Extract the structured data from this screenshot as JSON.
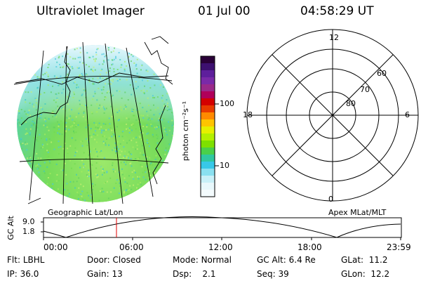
{
  "header": {
    "instrument": "Ultraviolet Imager",
    "date": "01 Jul 00",
    "time": "04:58:29 UT"
  },
  "colorbar": {
    "label": "photon cm⁻²s⁻¹",
    "tick_100": "100",
    "tick_10": "10",
    "colors": [
      "#2a0038",
      "#3d1070",
      "#5e1f9c",
      "#7a2aa8",
      "#9a2a8a",
      "#b0005a",
      "#d40000",
      "#e83b00",
      "#ff8a00",
      "#ffc400",
      "#e6f000",
      "#b4f000",
      "#7ee000",
      "#4ad04a",
      "#30c8a0",
      "#38c8e8",
      "#8ae0f0",
      "#c8f0f8",
      "#e8f8fc",
      "#f4fbfd"
    ]
  },
  "polar": {
    "labels": {
      "mlt_12": "12",
      "mlt_18": "18",
      "mlt_6": "6",
      "mlt_0": "0",
      "lat_60": "60",
      "lat_70": "70",
      "lat_80": "80"
    }
  },
  "captions": {
    "left": "Geographic Lat/Lon",
    "right": "Apex MLat/MLT"
  },
  "altitude_plot": {
    "axis_label": "GC Alt",
    "y_ticks": [
      "9.0",
      "1.8"
    ],
    "x_ticks": [
      "00:00",
      "06:00",
      "12:00",
      "18:00",
      "23:59"
    ],
    "current_marker_time": "04:58"
  },
  "info": {
    "flt_label": "Flt:",
    "flt_value": "LBHL",
    "door_label": "Door:",
    "door_value": "Closed",
    "mode_label": "Mode:",
    "mode_value": "Normal",
    "gcalt_label": "GC Alt:",
    "gcalt_value": "6.4 Re",
    "glat_label": "GLat:",
    "glat_value": "11.2",
    "ip_label": "IP:",
    "ip_value": "36.0",
    "gain_label": "Gain:",
    "gain_value": "13",
    "dsp_label": "Dsp:",
    "dsp_value": "2.1",
    "seq_label": "Seq:",
    "seq_value": "39",
    "glon_label": "GLon:",
    "glon_value": "12.2"
  }
}
